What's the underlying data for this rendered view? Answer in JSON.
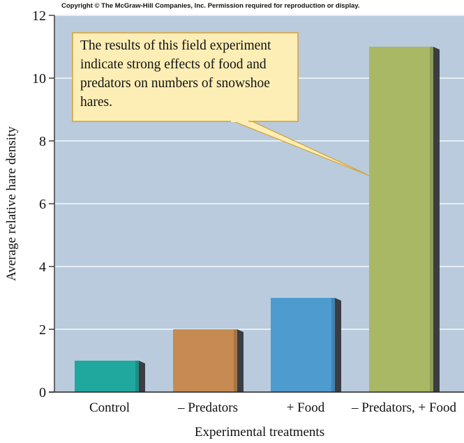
{
  "copyright": "Copyright © The McGraw-Hill Companies, Inc. Permission required for reproduction or display.",
  "chart_data": {
    "type": "bar",
    "categories": [
      "Control",
      "– Predators",
      "+ Food",
      "– Predators, + Food"
    ],
    "values": [
      1,
      2,
      3,
      11
    ],
    "colors": [
      "#20a89e",
      "#c68a52",
      "#4e9bd0",
      "#a8b865"
    ],
    "xlabel": "Experimental treatments",
    "ylabel": "Average relative hare density",
    "ylim": [
      0,
      12
    ],
    "yticks": [
      0,
      2,
      4,
      6,
      8,
      10,
      12
    ],
    "grid": true,
    "background": "#b9cbdc",
    "annotation": {
      "lines": [
        "The results of this field experiment",
        "indicate strong effects of food and",
        "predators on numbers of snowshoe",
        "hares."
      ],
      "points_to": "– Predators, + Food"
    }
  }
}
